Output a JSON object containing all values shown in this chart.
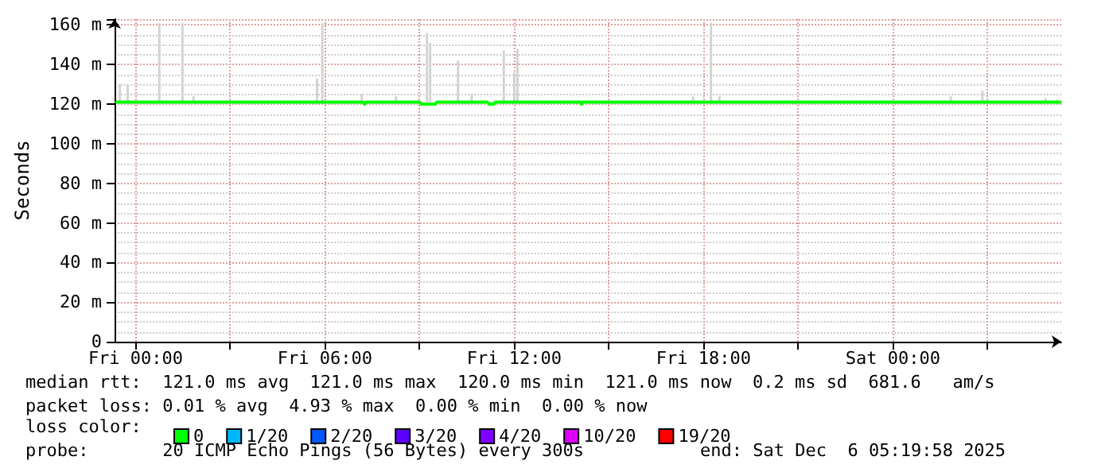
{
  "chart_data": {
    "type": "line",
    "ylabel": "Seconds",
    "legend_title": "loss color:",
    "legend": "bottom",
    "grid": true,
    "marker": "none",
    "line_style": "solid",
    "xlim": [
      "2025-12-04T23:20",
      "2025-12-06T05:20"
    ],
    "ylim": [
      0,
      163
    ],
    "xticks": [
      {
        "value": "2025-12-05T00:00",
        "label": "Fri 00:00"
      },
      {
        "value": "2025-12-05T03:00",
        "label": null
      },
      {
        "value": "2025-12-05T06:00",
        "label": "Fri 06:00"
      },
      {
        "value": "2025-12-05T09:00",
        "label": null
      },
      {
        "value": "2025-12-05T12:00",
        "label": "Fri 12:00"
      },
      {
        "value": "2025-12-05T15:00",
        "label": null
      },
      {
        "value": "2025-12-05T18:00",
        "label": "Fri 18:00"
      },
      {
        "value": "2025-12-05T21:00",
        "label": null
      },
      {
        "value": "2025-12-06T00:00",
        "label": "Sat 00:00"
      },
      {
        "value": "2025-12-06T03:00",
        "label": null
      }
    ],
    "yticks": [
      0,
      {
        "value": 20,
        "label": "20 m"
      },
      {
        "value": 40,
        "label": "40 m"
      },
      {
        "value": 60,
        "label": "60 m"
      },
      {
        "value": 80,
        "label": "80 m"
      },
      {
        "value": 100,
        "label": "100 m"
      },
      {
        "value": 120,
        "label": "120 m"
      },
      {
        "value": 140,
        "label": "140 m"
      },
      {
        "value": 160,
        "label": "160 m"
      }
    ],
    "series": [
      {
        "type": "bar",
        "color": "#d3d3d3",
        "x": [
          "2025-12-04T23:30",
          "2025-12-04T23:45",
          "2025-12-05T00:45",
          "2025-12-05T01:29",
          "2025-12-05T01:50",
          "2025-12-05T05:45",
          "2025-12-05T05:55",
          "2025-12-05T07:10",
          "2025-12-05T08:15",
          "2025-12-05T09:14",
          "2025-12-05T09:20",
          "2025-12-05T10:13",
          "2025-12-05T10:39",
          "2025-12-05T11:40",
          "2025-12-05T12:00",
          "2025-12-05T12:06",
          "2025-12-05T17:40",
          "2025-12-05T18:14",
          "2025-12-05T18:30",
          "2025-12-06T01:50",
          "2025-12-06T02:50",
          "2025-12-06T04:50"
        ],
        "base": [
          121,
          121,
          121,
          121,
          121,
          121,
          121,
          121,
          121,
          121,
          121,
          121,
          121,
          121,
          121,
          121,
          121,
          121,
          121,
          121,
          121,
          121
        ],
        "values": [
          9,
          9,
          40,
          40,
          3,
          12,
          40,
          4,
          3,
          35,
          30,
          21,
          4,
          26,
          15,
          27,
          3,
          40,
          3,
          3,
          6,
          2
        ]
      },
      {
        "name": "0",
        "color": "#00ff00",
        "x": [
          "2025-12-04T23:24",
          "2025-12-05T07:12",
          "2025-12-05T07:15",
          "2025-12-05T07:18",
          "2025-12-05T09:00",
          "2025-12-05T09:03",
          "2025-12-05T09:30",
          "2025-12-05T09:33",
          "2025-12-05T11:09",
          "2025-12-05T11:12",
          "2025-12-05T11:21",
          "2025-12-05T11:24",
          "2025-12-05T14:06",
          "2025-12-05T14:08",
          "2025-12-05T14:10",
          "2025-12-06T05:18"
        ],
        "values": [
          121,
          121,
          120,
          121,
          121,
          120,
          120,
          121,
          121,
          120,
          120,
          121,
          121,
          120,
          121,
          121
        ]
      },
      {
        "name": "1/20",
        "color": "#00b8ff"
      },
      {
        "name": "2/20",
        "color": "#0059ff"
      },
      {
        "name": "3/20",
        "color": "#5e00ff"
      },
      {
        "name": "4/20",
        "color": "#7e00ff"
      },
      {
        "name": "10/20",
        "color": "#dd00ff"
      },
      {
        "name": "19/20",
        "color": "#ff0000"
      }
    ],
    "annotations": [
      "median rtt:  121.0 ms avg  121.0 ms max  120.0 ms min  121.0 ms now  0.2 ms sd  681.6   am/s",
      "packet loss: 0.01 % avg  4.93 % max  0.00 % min  0.00 % now",
      "probe:       20 ICMP Echo Pings (56 Bytes) every 300s",
      "end: Sat Dec  6 05:19:58 2025"
    ]
  }
}
